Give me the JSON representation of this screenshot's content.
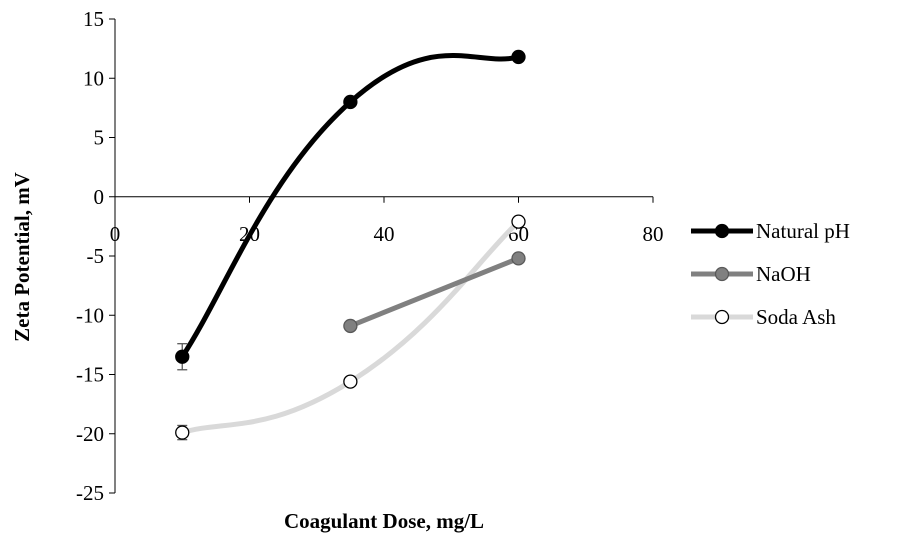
{
  "chart_data": {
    "type": "line",
    "title": "",
    "xlabel": "Coagulant Dose, mg/L",
    "ylabel": "Zeta Potential, mV",
    "xlim": [
      0,
      80
    ],
    "ylim": [
      -25,
      15
    ],
    "xticks": [
      0,
      20,
      40,
      60,
      80
    ],
    "yticks": [
      15,
      10,
      5,
      0,
      -5,
      -10,
      -15,
      -20,
      -25
    ],
    "smooth": true,
    "grid": false,
    "legend_position": "right",
    "series": [
      {
        "name": "Natural pH",
        "x": [
          10,
          35,
          60
        ],
        "y": [
          -13.5,
          8,
          11.8
        ],
        "error": [
          1.1,
          0,
          0
        ],
        "line_color": "#000000",
        "marker_fill": "#000000",
        "marker_stroke": "#000000"
      },
      {
        "name": "NaOH",
        "x": [
          35,
          60
        ],
        "y": [
          -10.9,
          -5.2
        ],
        "error": [
          0,
          0
        ],
        "line_color": "#808080",
        "marker_fill": "#808080",
        "marker_stroke": "#595959"
      },
      {
        "name": "Soda Ash",
        "x": [
          10,
          35,
          60
        ],
        "y": [
          -19.9,
          -15.6,
          -2.1
        ],
        "error": [
          0.6,
          0,
          0
        ],
        "line_color": "#d9d9d9",
        "marker_fill": "#ffffff",
        "marker_stroke": "#000000"
      }
    ]
  }
}
